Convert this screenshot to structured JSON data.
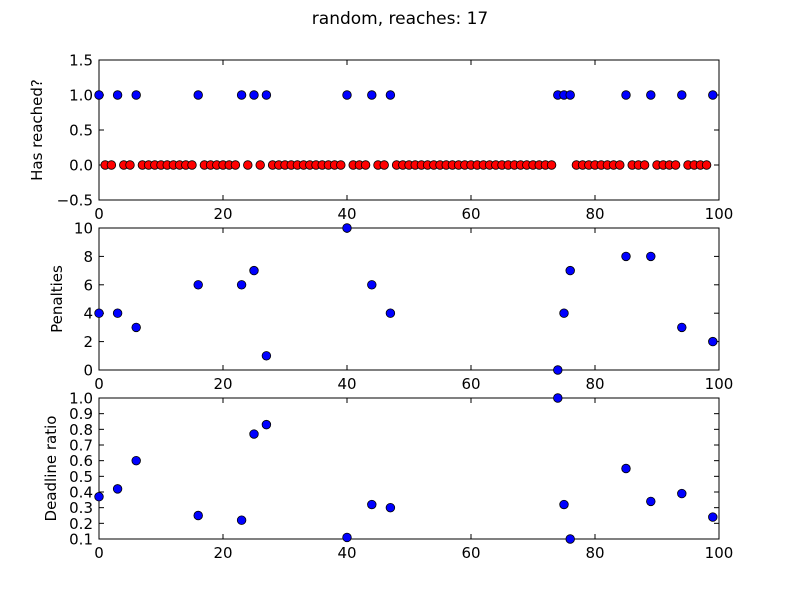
{
  "figure": {
    "title": "random, reaches: 17",
    "colors": {
      "background": "#ffffff",
      "reached": "#0000ff",
      "not_reached": "#ff0000",
      "axes": "#000000"
    }
  },
  "chart_data": [
    {
      "type": "scatter",
      "ylabel": "Has reached?",
      "xlim": [
        0,
        100
      ],
      "ylim": [
        -0.5,
        1.5
      ],
      "xticks": [
        0,
        20,
        40,
        60,
        80,
        100
      ],
      "yticks": [
        -0.5,
        0.0,
        0.5,
        1.0,
        1.5
      ],
      "ytick_labels": [
        "−0.5",
        "0.0",
        "0.5",
        "1.0",
        "1.5"
      ],
      "grid": false,
      "series": [
        {
          "marker_color": "#0000ff",
          "x": [
            0,
            3,
            6,
            16,
            23,
            25,
            27,
            40,
            44,
            47,
            74,
            75,
            76,
            85,
            89,
            94,
            99
          ],
          "y": [
            1,
            1,
            1,
            1,
            1,
            1,
            1,
            1,
            1,
            1,
            1,
            1,
            1,
            1,
            1,
            1,
            1
          ]
        },
        {
          "marker_color": "#ff0000",
          "x": [
            1,
            2,
            4,
            5,
            7,
            8,
            9,
            10,
            11,
            12,
            13,
            14,
            15,
            17,
            18,
            19,
            20,
            21,
            22,
            24,
            26,
            28,
            29,
            30,
            31,
            32,
            33,
            34,
            35,
            36,
            37,
            38,
            39,
            41,
            42,
            43,
            45,
            46,
            48,
            49,
            50,
            51,
            52,
            53,
            54,
            55,
            56,
            57,
            58,
            59,
            60,
            61,
            62,
            63,
            64,
            65,
            66,
            67,
            68,
            69,
            70,
            71,
            72,
            73,
            77,
            78,
            79,
            80,
            81,
            82,
            83,
            84,
            86,
            87,
            88,
            90,
            91,
            92,
            93,
            95,
            96,
            97,
            98
          ],
          "y": [
            0,
            0,
            0,
            0,
            0,
            0,
            0,
            0,
            0,
            0,
            0,
            0,
            0,
            0,
            0,
            0,
            0,
            0,
            0,
            0,
            0,
            0,
            0,
            0,
            0,
            0,
            0,
            0,
            0,
            0,
            0,
            0,
            0,
            0,
            0,
            0,
            0,
            0,
            0,
            0,
            0,
            0,
            0,
            0,
            0,
            0,
            0,
            0,
            0,
            0,
            0,
            0,
            0,
            0,
            0,
            0,
            0,
            0,
            0,
            0,
            0,
            0,
            0,
            0,
            0,
            0,
            0,
            0,
            0,
            0,
            0,
            0,
            0,
            0,
            0,
            0,
            0,
            0,
            0,
            0,
            0,
            0,
            0
          ]
        }
      ]
    },
    {
      "type": "scatter",
      "ylabel": "Penalties",
      "xlim": [
        0,
        100
      ],
      "ylim": [
        0,
        10
      ],
      "xticks": [
        0,
        20,
        40,
        60,
        80,
        100
      ],
      "yticks": [
        0,
        2,
        4,
        6,
        8,
        10
      ],
      "ytick_labels": [
        "0",
        "2",
        "4",
        "6",
        "8",
        "10"
      ],
      "grid": false,
      "series": [
        {
          "marker_color": "#0000ff",
          "x": [
            0,
            3,
            6,
            16,
            23,
            25,
            27,
            40,
            44,
            47,
            74,
            75,
            76,
            85,
            89,
            94,
            99
          ],
          "y": [
            4,
            4,
            3,
            6,
            6,
            7,
            1,
            10,
            6,
            4,
            0,
            4,
            7,
            8,
            8,
            3,
            2
          ]
        }
      ]
    },
    {
      "type": "scatter",
      "ylabel": "Deadline ratio",
      "xlim": [
        0,
        100
      ],
      "ylim": [
        0.1,
        1.0
      ],
      "xticks": [
        0,
        20,
        40,
        60,
        80,
        100
      ],
      "yticks": [
        0.1,
        0.2,
        0.3,
        0.4,
        0.5,
        0.6,
        0.7,
        0.8,
        0.9,
        1.0
      ],
      "ytick_labels": [
        "0.1",
        "0.2",
        "0.3",
        "0.4",
        "0.5",
        "0.6",
        "0.7",
        "0.8",
        "0.9",
        "1.0"
      ],
      "grid": false,
      "series": [
        {
          "marker_color": "#0000ff",
          "x": [
            0,
            3,
            6,
            16,
            23,
            25,
            27,
            40,
            44,
            47,
            74,
            75,
            76,
            85,
            89,
            94,
            99
          ],
          "y": [
            0.37,
            0.42,
            0.6,
            0.25,
            0.22,
            0.77,
            0.83,
            0.11,
            0.32,
            0.3,
            1.0,
            0.32,
            0.1,
            0.55,
            0.34,
            0.39,
            0.24
          ]
        }
      ]
    }
  ]
}
